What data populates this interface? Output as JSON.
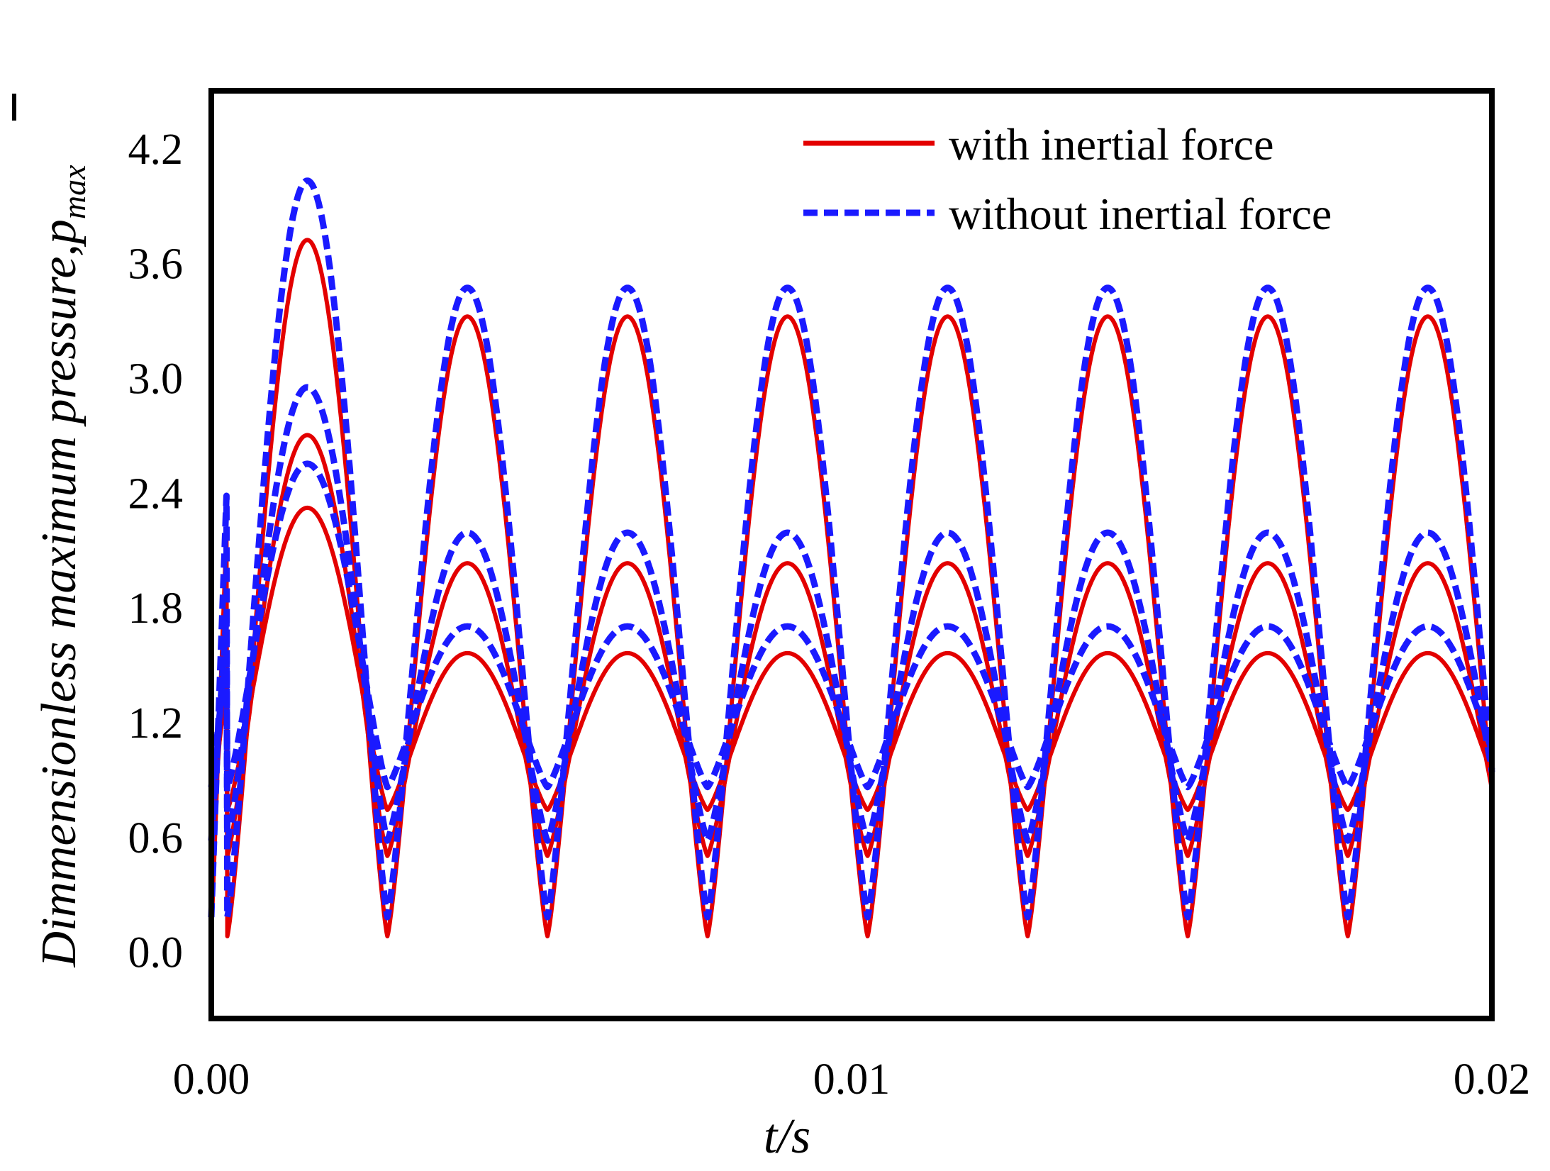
{
  "chart_data": {
    "type": "line",
    "title": "",
    "xlabel": "t/s",
    "ylabel": "Dimmensionless maximum pressure,p",
    "ylabel_sub": "max",
    "xlim": [
      0,
      0.02
    ],
    "ylim": [
      -0.35,
      4.5
    ],
    "xticks": [
      {
        "value": 0,
        "label": "0.00"
      },
      {
        "value": 0.01,
        "label": "0.01"
      },
      {
        "value": 0.02,
        "label": "0.02"
      }
    ],
    "yticks": [
      {
        "value": 0.0,
        "label": "0.0"
      },
      {
        "value": 0.6,
        "label": "0.6"
      },
      {
        "value": 1.2,
        "label": "1.2"
      },
      {
        "value": 1.8,
        "label": "1.8"
      },
      {
        "value": 2.4,
        "label": "2.4"
      },
      {
        "value": 3.0,
        "label": "3.0"
      },
      {
        "value": 3.6,
        "label": "3.6"
      },
      {
        "value": 4.2,
        "label": "4.2"
      }
    ],
    "grid": false,
    "legend_position": "top-right",
    "legend": [
      {
        "label": "with inertial force",
        "color": "#e30000",
        "style": "solid"
      },
      {
        "label": "without inertial force",
        "color": "#1a1aff",
        "style": "dashed"
      }
    ],
    "period": 0.0025,
    "x_offset": 0.00025,
    "series": [
      {
        "name": "with inertial force",
        "case": "high",
        "color": "#e30000",
        "style": "solid",
        "peak_first": 3.72,
        "peak": 3.32,
        "trough": 0.08
      },
      {
        "name": "with inertial force",
        "case": "mid",
        "color": "#e30000",
        "style": "solid",
        "peak_first": 2.7,
        "peak": 2.03,
        "trough": 0.5
      },
      {
        "name": "with inertial force",
        "case": "low",
        "color": "#e30000",
        "style": "solid",
        "peak_first": 2.32,
        "peak": 1.56,
        "trough": 0.74
      },
      {
        "name": "without inertial force",
        "case": "high",
        "color": "#1a1aff",
        "style": "dashed",
        "peak_first": 4.03,
        "peak": 3.47,
        "trough": 0.18
      },
      {
        "name": "without inertial force",
        "case": "mid",
        "color": "#1a1aff",
        "style": "dashed",
        "peak_first": 2.95,
        "peak": 2.19,
        "trough": 0.58
      },
      {
        "name": "without inertial force",
        "case": "low",
        "color": "#1a1aff",
        "style": "dashed",
        "peak_first": 2.55,
        "peak": 1.7,
        "trough": 0.86
      }
    ]
  }
}
